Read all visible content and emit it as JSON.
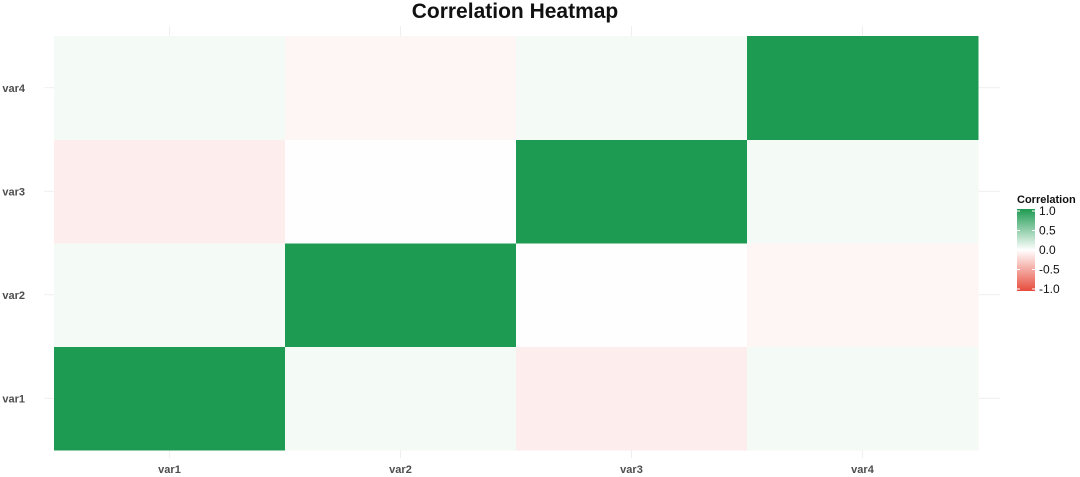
{
  "chart_data": {
    "type": "heatmap",
    "title": "Correlation Heatmap",
    "xlabel": "",
    "ylabel": "",
    "x_categories": [
      "var1",
      "var2",
      "var3",
      "var4"
    ],
    "y_categories": [
      "var1",
      "var2",
      "var3",
      "var4"
    ],
    "matrix": [
      [
        1.0,
        0.05,
        -0.1,
        0.05
      ],
      [
        0.05,
        1.0,
        0.01,
        -0.05
      ],
      [
        -0.1,
        0.01,
        1.0,
        0.05
      ],
      [
        0.05,
        -0.05,
        0.05,
        1.0
      ]
    ],
    "legend": {
      "title": "Correlation",
      "ticks": [
        "1.0",
        "0.5",
        "0.0",
        "-0.5",
        "-1.0"
      ],
      "tick_values": [
        1.0,
        0.5,
        0.0,
        -0.5,
        -1.0
      ],
      "range": [
        -1,
        1
      ],
      "placement": "right"
    },
    "colors": {
      "low": "#e74c3c",
      "mid": "#ffffff",
      "high": "#1e9b52"
    },
    "grid": true
  }
}
